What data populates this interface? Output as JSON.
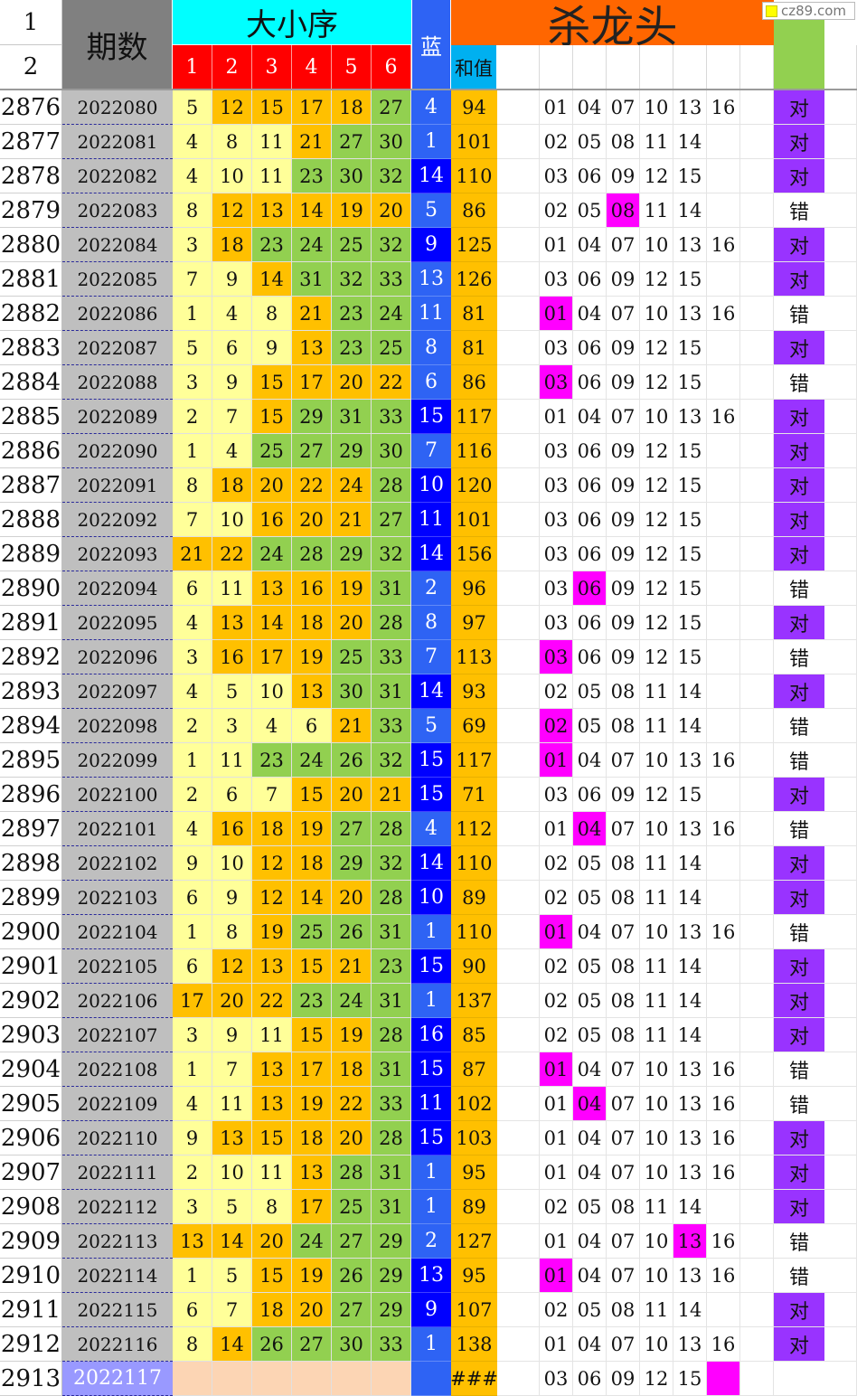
{
  "header": {
    "row_num_1": "1",
    "row_num_2": "2",
    "period": "期数",
    "dxx": "大小序",
    "cols": [
      "1",
      "2",
      "3",
      "4",
      "5",
      "6"
    ],
    "blue": "蓝",
    "kill": "杀龙头",
    "sum": "和值"
  },
  "watermark": "cz89.com",
  "colors": {
    "yellow_light": "#ffff99",
    "orange": "#ffc000",
    "green": "#92d050",
    "blue_dark": "#0000ff",
    "blue_light": "#2e63f4",
    "magenta": "#ff00ff",
    "purple": "#9933ff",
    "header_orange": "#ff6600",
    "header_cyan": "#00ffff",
    "header_red": "#ff0000"
  },
  "rows": [
    {
      "n": "2876",
      "p": "2022080",
      "b": [
        "5",
        "12",
        "15",
        "17",
        "18",
        "27"
      ],
      "c": [
        1,
        2,
        2,
        2,
        2,
        3
      ],
      "blue": "4",
      "bd": 0,
      "sum": "94",
      "k": [
        "01",
        "04",
        "07",
        "10",
        "13",
        "16"
      ],
      "hit": -1,
      "r": "对"
    },
    {
      "n": "2877",
      "p": "2022081",
      "b": [
        "4",
        "8",
        "11",
        "21",
        "27",
        "30"
      ],
      "c": [
        1,
        1,
        1,
        2,
        3,
        3
      ],
      "blue": "1",
      "bd": 0,
      "sum": "101",
      "k": [
        "02",
        "05",
        "08",
        "11",
        "14",
        ""
      ],
      "hit": -1,
      "r": "对"
    },
    {
      "n": "2878",
      "p": "2022082",
      "b": [
        "4",
        "10",
        "11",
        "23",
        "30",
        "32"
      ],
      "c": [
        1,
        1,
        1,
        3,
        3,
        3
      ],
      "blue": "14",
      "bd": 1,
      "sum": "110",
      "k": [
        "03",
        "06",
        "09",
        "12",
        "15",
        ""
      ],
      "hit": -1,
      "r": "对"
    },
    {
      "n": "2879",
      "p": "2022083",
      "b": [
        "8",
        "12",
        "13",
        "14",
        "19",
        "20"
      ],
      "c": [
        1,
        2,
        2,
        2,
        2,
        2
      ],
      "blue": "5",
      "bd": 0,
      "sum": "86",
      "k": [
        "02",
        "05",
        "08",
        "11",
        "14",
        ""
      ],
      "hit": 2,
      "r": "错"
    },
    {
      "n": "2880",
      "p": "2022084",
      "b": [
        "3",
        "18",
        "23",
        "24",
        "25",
        "32"
      ],
      "c": [
        1,
        2,
        3,
        3,
        3,
        3
      ],
      "blue": "9",
      "bd": 1,
      "sum": "125",
      "k": [
        "01",
        "04",
        "07",
        "10",
        "13",
        "16"
      ],
      "hit": -1,
      "r": "对"
    },
    {
      "n": "2881",
      "p": "2022085",
      "b": [
        "7",
        "9",
        "14",
        "31",
        "32",
        "33"
      ],
      "c": [
        1,
        1,
        2,
        3,
        3,
        3
      ],
      "blue": "13",
      "bd": 0,
      "sum": "126",
      "k": [
        "03",
        "06",
        "09",
        "12",
        "15",
        ""
      ],
      "hit": -1,
      "r": "对"
    },
    {
      "n": "2882",
      "p": "2022086",
      "b": [
        "1",
        "4",
        "8",
        "21",
        "23",
        "24"
      ],
      "c": [
        1,
        1,
        1,
        2,
        3,
        3
      ],
      "blue": "11",
      "bd": 0,
      "sum": "81",
      "k": [
        "01",
        "04",
        "07",
        "10",
        "13",
        "16"
      ],
      "hit": 0,
      "r": "错"
    },
    {
      "n": "2883",
      "p": "2022087",
      "b": [
        "5",
        "6",
        "9",
        "13",
        "23",
        "25"
      ],
      "c": [
        1,
        1,
        1,
        2,
        3,
        3
      ],
      "blue": "8",
      "bd": 0,
      "sum": "81",
      "k": [
        "03",
        "06",
        "09",
        "12",
        "15",
        ""
      ],
      "hit": -1,
      "r": "对"
    },
    {
      "n": "2884",
      "p": "2022088",
      "b": [
        "3",
        "9",
        "15",
        "17",
        "20",
        "22"
      ],
      "c": [
        1,
        1,
        2,
        2,
        2,
        2
      ],
      "blue": "6",
      "bd": 0,
      "sum": "86",
      "k": [
        "03",
        "06",
        "09",
        "12",
        "15",
        ""
      ],
      "hit": 0,
      "r": "错"
    },
    {
      "n": "2885",
      "p": "2022089",
      "b": [
        "2",
        "7",
        "15",
        "29",
        "31",
        "33"
      ],
      "c": [
        1,
        1,
        2,
        3,
        3,
        3
      ],
      "blue": "15",
      "bd": 1,
      "sum": "117",
      "k": [
        "01",
        "04",
        "07",
        "10",
        "13",
        "16"
      ],
      "hit": -1,
      "r": "对"
    },
    {
      "n": "2886",
      "p": "2022090",
      "b": [
        "1",
        "4",
        "25",
        "27",
        "29",
        "30"
      ],
      "c": [
        1,
        1,
        3,
        3,
        3,
        3
      ],
      "blue": "7",
      "bd": 0,
      "sum": "116",
      "k": [
        "03",
        "06",
        "09",
        "12",
        "15",
        ""
      ],
      "hit": -1,
      "r": "对"
    },
    {
      "n": "2887",
      "p": "2022091",
      "b": [
        "8",
        "18",
        "20",
        "22",
        "24",
        "28"
      ],
      "c": [
        1,
        2,
        2,
        2,
        2,
        3
      ],
      "blue": "10",
      "bd": 1,
      "sum": "120",
      "k": [
        "03",
        "06",
        "09",
        "12",
        "15",
        ""
      ],
      "hit": -1,
      "r": "对"
    },
    {
      "n": "2888",
      "p": "2022092",
      "b": [
        "7",
        "10",
        "16",
        "20",
        "21",
        "27"
      ],
      "c": [
        1,
        1,
        2,
        2,
        2,
        3
      ],
      "blue": "11",
      "bd": 1,
      "sum": "101",
      "k": [
        "03",
        "06",
        "09",
        "12",
        "15",
        ""
      ],
      "hit": -1,
      "r": "对"
    },
    {
      "n": "2889",
      "p": "2022093",
      "b": [
        "21",
        "22",
        "24",
        "28",
        "29",
        "32"
      ],
      "c": [
        2,
        2,
        3,
        3,
        3,
        3
      ],
      "blue": "14",
      "bd": 1,
      "sum": "156",
      "k": [
        "03",
        "06",
        "09",
        "12",
        "15",
        ""
      ],
      "hit": -1,
      "r": "对"
    },
    {
      "n": "2890",
      "p": "2022094",
      "b": [
        "6",
        "11",
        "13",
        "16",
        "19",
        "31"
      ],
      "c": [
        1,
        1,
        2,
        2,
        2,
        3
      ],
      "blue": "2",
      "bd": 0,
      "sum": "96",
      "k": [
        "03",
        "06",
        "09",
        "12",
        "15",
        ""
      ],
      "hit": 1,
      "r": "错"
    },
    {
      "n": "2891",
      "p": "2022095",
      "b": [
        "4",
        "13",
        "14",
        "18",
        "20",
        "28"
      ],
      "c": [
        1,
        2,
        2,
        2,
        2,
        3
      ],
      "blue": "8",
      "bd": 0,
      "sum": "97",
      "k": [
        "03",
        "06",
        "09",
        "12",
        "15",
        ""
      ],
      "hit": -1,
      "r": "对"
    },
    {
      "n": "2892",
      "p": "2022096",
      "b": [
        "3",
        "16",
        "17",
        "19",
        "25",
        "33"
      ],
      "c": [
        1,
        2,
        2,
        2,
        3,
        3
      ],
      "blue": "7",
      "bd": 0,
      "sum": "113",
      "k": [
        "03",
        "06",
        "09",
        "12",
        "15",
        ""
      ],
      "hit": 0,
      "r": "错"
    },
    {
      "n": "2893",
      "p": "2022097",
      "b": [
        "4",
        "5",
        "10",
        "13",
        "30",
        "31"
      ],
      "c": [
        1,
        1,
        1,
        2,
        3,
        3
      ],
      "blue": "14",
      "bd": 1,
      "sum": "93",
      "k": [
        "02",
        "05",
        "08",
        "11",
        "14",
        ""
      ],
      "hit": -1,
      "r": "对"
    },
    {
      "n": "2894",
      "p": "2022098",
      "b": [
        "2",
        "3",
        "4",
        "6",
        "21",
        "33"
      ],
      "c": [
        1,
        1,
        1,
        1,
        2,
        3
      ],
      "blue": "5",
      "bd": 0,
      "sum": "69",
      "k": [
        "02",
        "05",
        "08",
        "11",
        "14",
        ""
      ],
      "hit": 0,
      "r": "错"
    },
    {
      "n": "2895",
      "p": "2022099",
      "b": [
        "1",
        "11",
        "23",
        "24",
        "26",
        "32"
      ],
      "c": [
        1,
        1,
        3,
        3,
        3,
        3
      ],
      "blue": "15",
      "bd": 1,
      "sum": "117",
      "k": [
        "01",
        "04",
        "07",
        "10",
        "13",
        "16"
      ],
      "hit": 0,
      "r": "错"
    },
    {
      "n": "2896",
      "p": "2022100",
      "b": [
        "2",
        "6",
        "7",
        "15",
        "20",
        "21"
      ],
      "c": [
        1,
        1,
        1,
        2,
        2,
        2
      ],
      "blue": "15",
      "bd": 1,
      "sum": "71",
      "k": [
        "03",
        "06",
        "09",
        "12",
        "15",
        ""
      ],
      "hit": -1,
      "r": "对"
    },
    {
      "n": "2897",
      "p": "2022101",
      "b": [
        "4",
        "16",
        "18",
        "19",
        "27",
        "28"
      ],
      "c": [
        1,
        2,
        2,
        2,
        3,
        3
      ],
      "blue": "4",
      "bd": 0,
      "sum": "112",
      "k": [
        "01",
        "04",
        "07",
        "10",
        "13",
        "16"
      ],
      "hit": 1,
      "r": "错"
    },
    {
      "n": "2898",
      "p": "2022102",
      "b": [
        "9",
        "10",
        "12",
        "18",
        "29",
        "32"
      ],
      "c": [
        1,
        1,
        2,
        2,
        3,
        3
      ],
      "blue": "14",
      "bd": 1,
      "sum": "110",
      "k": [
        "02",
        "05",
        "08",
        "11",
        "14",
        ""
      ],
      "hit": -1,
      "r": "对"
    },
    {
      "n": "2899",
      "p": "2022103",
      "b": [
        "6",
        "9",
        "12",
        "14",
        "20",
        "28"
      ],
      "c": [
        1,
        1,
        2,
        2,
        2,
        3
      ],
      "blue": "10",
      "bd": 1,
      "sum": "89",
      "k": [
        "02",
        "05",
        "08",
        "11",
        "14",
        ""
      ],
      "hit": -1,
      "r": "对"
    },
    {
      "n": "2900",
      "p": "2022104",
      "b": [
        "1",
        "8",
        "19",
        "25",
        "26",
        "31"
      ],
      "c": [
        1,
        1,
        2,
        3,
        3,
        3
      ],
      "blue": "1",
      "bd": 0,
      "sum": "110",
      "k": [
        "01",
        "04",
        "07",
        "10",
        "13",
        "16"
      ],
      "hit": 0,
      "r": "错"
    },
    {
      "n": "2901",
      "p": "2022105",
      "b": [
        "6",
        "12",
        "13",
        "15",
        "21",
        "23"
      ],
      "c": [
        1,
        2,
        2,
        2,
        2,
        3
      ],
      "blue": "15",
      "bd": 1,
      "sum": "90",
      "k": [
        "02",
        "05",
        "08",
        "11",
        "14",
        ""
      ],
      "hit": -1,
      "r": "对"
    },
    {
      "n": "2902",
      "p": "2022106",
      "b": [
        "17",
        "20",
        "22",
        "23",
        "24",
        "31"
      ],
      "c": [
        2,
        2,
        2,
        3,
        3,
        3
      ],
      "blue": "1",
      "bd": 0,
      "sum": "137",
      "k": [
        "02",
        "05",
        "08",
        "11",
        "14",
        ""
      ],
      "hit": -1,
      "r": "对"
    },
    {
      "n": "2903",
      "p": "2022107",
      "b": [
        "3",
        "9",
        "11",
        "15",
        "19",
        "28"
      ],
      "c": [
        1,
        1,
        1,
        2,
        2,
        3
      ],
      "blue": "16",
      "bd": 1,
      "sum": "85",
      "k": [
        "02",
        "05",
        "08",
        "11",
        "14",
        ""
      ],
      "hit": -1,
      "r": "对"
    },
    {
      "n": "2904",
      "p": "2022108",
      "b": [
        "1",
        "7",
        "13",
        "17",
        "18",
        "31"
      ],
      "c": [
        1,
        1,
        2,
        2,
        2,
        3
      ],
      "blue": "15",
      "bd": 1,
      "sum": "87",
      "k": [
        "01",
        "04",
        "07",
        "10",
        "13",
        "16"
      ],
      "hit": 0,
      "r": "错"
    },
    {
      "n": "2905",
      "p": "2022109",
      "b": [
        "4",
        "11",
        "13",
        "19",
        "22",
        "33"
      ],
      "c": [
        1,
        1,
        2,
        2,
        2,
        3
      ],
      "blue": "11",
      "bd": 1,
      "sum": "102",
      "k": [
        "01",
        "04",
        "07",
        "10",
        "13",
        "16"
      ],
      "hit": 1,
      "r": "错"
    },
    {
      "n": "2906",
      "p": "2022110",
      "b": [
        "9",
        "13",
        "15",
        "18",
        "20",
        "28"
      ],
      "c": [
        1,
        2,
        2,
        2,
        2,
        3
      ],
      "blue": "15",
      "bd": 1,
      "sum": "103",
      "k": [
        "01",
        "04",
        "07",
        "10",
        "13",
        "16"
      ],
      "hit": -1,
      "r": "对"
    },
    {
      "n": "2907",
      "p": "2022111",
      "b": [
        "2",
        "10",
        "11",
        "13",
        "28",
        "31"
      ],
      "c": [
        1,
        1,
        1,
        2,
        3,
        3
      ],
      "blue": "1",
      "bd": 0,
      "sum": "95",
      "k": [
        "01",
        "04",
        "07",
        "10",
        "13",
        "16"
      ],
      "hit": -1,
      "r": "对"
    },
    {
      "n": "2908",
      "p": "2022112",
      "b": [
        "3",
        "5",
        "8",
        "17",
        "25",
        "31"
      ],
      "c": [
        1,
        1,
        1,
        2,
        3,
        3
      ],
      "blue": "1",
      "bd": 0,
      "sum": "89",
      "k": [
        "02",
        "05",
        "08",
        "11",
        "14",
        ""
      ],
      "hit": -1,
      "r": "对"
    },
    {
      "n": "2909",
      "p": "2022113",
      "b": [
        "13",
        "14",
        "20",
        "24",
        "27",
        "29"
      ],
      "c": [
        2,
        2,
        2,
        3,
        3,
        3
      ],
      "blue": "2",
      "bd": 0,
      "sum": "127",
      "k": [
        "01",
        "04",
        "07",
        "10",
        "13",
        "16"
      ],
      "hit": 4,
      "r": "错"
    },
    {
      "n": "2910",
      "p": "2022114",
      "b": [
        "1",
        "5",
        "15",
        "19",
        "26",
        "29"
      ],
      "c": [
        1,
        1,
        2,
        2,
        3,
        3
      ],
      "blue": "13",
      "bd": 1,
      "sum": "95",
      "k": [
        "01",
        "04",
        "07",
        "10",
        "13",
        "16"
      ],
      "hit": 0,
      "r": "错"
    },
    {
      "n": "2911",
      "p": "2022115",
      "b": [
        "6",
        "7",
        "18",
        "20",
        "27",
        "29"
      ],
      "c": [
        1,
        1,
        2,
        2,
        3,
        3
      ],
      "blue": "9",
      "bd": 1,
      "sum": "107",
      "k": [
        "02",
        "05",
        "08",
        "11",
        "14",
        ""
      ],
      "hit": -1,
      "r": "对"
    },
    {
      "n": "2912",
      "p": "2022116",
      "b": [
        "8",
        "14",
        "26",
        "27",
        "30",
        "33"
      ],
      "c": [
        1,
        2,
        3,
        3,
        3,
        3
      ],
      "blue": "1",
      "bd": 0,
      "sum": "138",
      "k": [
        "01",
        "04",
        "07",
        "10",
        "13",
        "16"
      ],
      "hit": -1,
      "r": "对"
    },
    {
      "n": "2913",
      "p": "2022117",
      "b": [
        "",
        "",
        "",
        "",
        "",
        ""
      ],
      "c": [
        4,
        4,
        4,
        4,
        4,
        4
      ],
      "blue": "",
      "bd": 2,
      "sum": "###",
      "k": [
        "03",
        "06",
        "09",
        "12",
        "15",
        ""
      ],
      "hit": 5,
      "r": "",
      "current": true
    }
  ]
}
